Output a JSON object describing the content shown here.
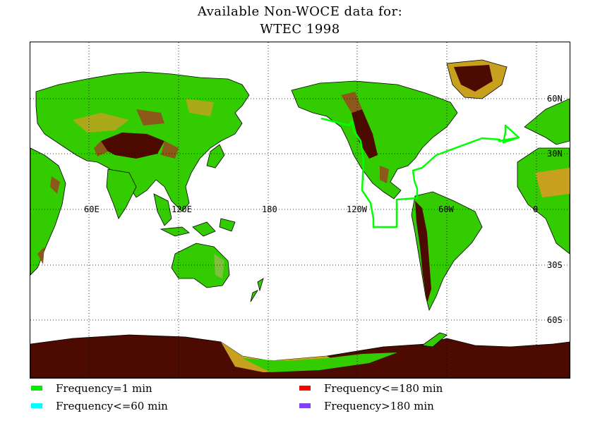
{
  "title": {
    "line1": "Available Non-WOCE data for:",
    "line2": "WTEC 1998"
  },
  "map": {
    "projection": "equirectangular",
    "center_longitude": "180",
    "longitude_labels": [
      "60E",
      "120E",
      "180",
      "120W",
      "60W",
      "0"
    ],
    "latitude_labels": [
      "60N",
      "30N",
      "30S",
      "60S"
    ],
    "grid": "dotted",
    "colors": {
      "ocean": "#ffffff",
      "lowland": "#33cc00",
      "midland": "#7fbf3f",
      "highland": "#c8a020",
      "mountain": "#8b5a1a",
      "peak": "#4d0a00",
      "coast": "#000000",
      "cruise_track": "#00ff00"
    }
  },
  "cruise_track": {
    "frequency": "Frequency=1 min",
    "color": "#00ff00"
  },
  "legend": [
    {
      "label": "Frequency=1 min",
      "color": "#00ee00"
    },
    {
      "label": "Frequency<=60 min",
      "color": "#00ffff"
    },
    {
      "label": "Frequency<=180 min",
      "color": "#ff0000"
    },
    {
      "label": "Frequency>180 min",
      "color": "#8040ff"
    }
  ]
}
